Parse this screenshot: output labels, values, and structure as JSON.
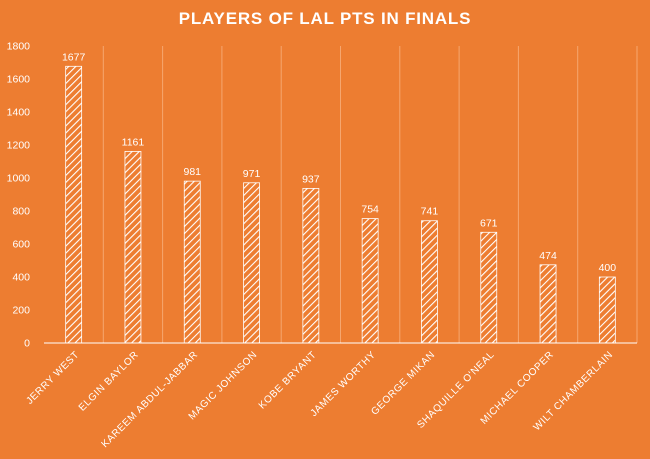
{
  "chart_data": {
    "type": "bar",
    "title": "PLAYERS OF LAL PTS IN FINALS",
    "categories": [
      "JERRY WEST",
      "ELGIN BAYLOR",
      "KAREEM ABDUL-JABBAR",
      "MAGIC JOHNSON",
      "KOBE BRYANT",
      "JAMES WORTHY",
      "GEORGE MIKAN",
      "SHAQUILLE O'NEAL",
      "MICHAEL COOPER",
      "WILT CHAMBERLAIN"
    ],
    "values": [
      1677,
      1161,
      981,
      971,
      937,
      754,
      741,
      671,
      474,
      400
    ],
    "yticks": [
      "0",
      "200",
      "400",
      "600",
      "800",
      "1000",
      "1200",
      "1400",
      "1600",
      "1800"
    ],
    "ylim": [
      0,
      1800
    ],
    "xlabel": "",
    "ylabel": "",
    "grid": "vertical",
    "legend": "none",
    "colors": {
      "background": "#ED7D31",
      "bar_pattern": "#FFFFFF",
      "text": "#FFFFFF",
      "axis": "#FFFFFF",
      "grid": "#F6A66F"
    }
  }
}
